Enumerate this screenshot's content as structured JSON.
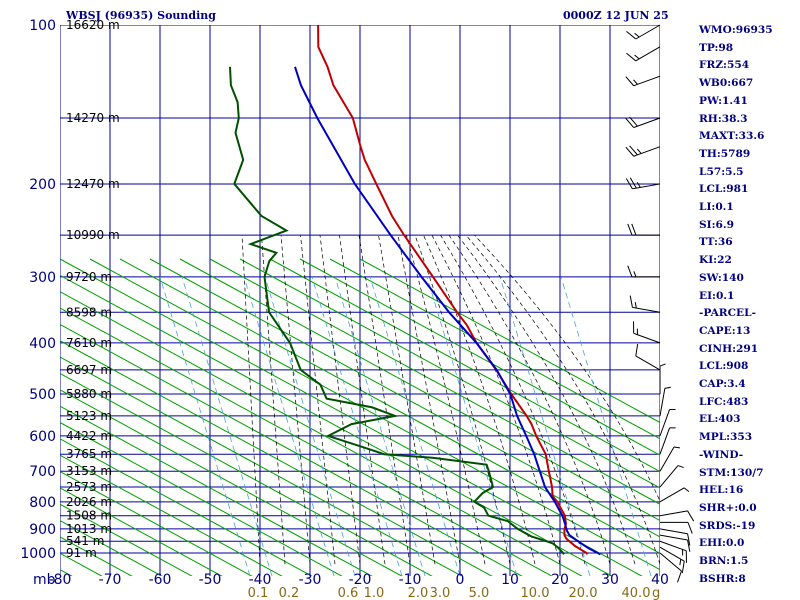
{
  "header": {
    "title": "WBSJ (96935) Sounding",
    "time": "0000Z 12 JUN 25"
  },
  "indices": [
    "WMO:96935",
    "TP:98",
    "FRZ:554",
    "WB0:667",
    "PW:1.41",
    "RH:38.3",
    "MAXT:33.6",
    "TH:5789",
    "L57:5.5",
    "LCL:981",
    "LI:0.1",
    "SI:6.9",
    "TT:36",
    "KI:22",
    "SW:140",
    "EI:0.1",
    "-PARCEL-",
    "CAPE:13",
    "CINH:291",
    "LCL:908",
    "CAP:3.4",
    "LFC:483",
    "EL:403",
    "MPL:353",
    "-WIND-",
    "STM:130/7",
    "HEL:16",
    "SHR+:0.0",
    "SRDS:-19",
    "EHI:0.0",
    "BRN:1.5",
    "BSHR:8"
  ],
  "colors": {
    "grid": "#0000a0",
    "dry_adiabat": "#00a000",
    "moist_adiabat": "#000000",
    "mixing_ratio": "#4aa3df",
    "temperature": "#c00000",
    "dewpoint": "#005000",
    "parcel": "#0000c0",
    "labels": "#000080",
    "mixing_labels": "#8b6914"
  },
  "chart_data": {
    "type": "skew-t log-p",
    "title": "WBSJ (96935) Sounding",
    "xlabel": "",
    "ylabel": "",
    "pressure_ticks": [
      "100",
      "200",
      "300",
      "400",
      "500",
      "600",
      "700",
      "800",
      "900",
      "1000"
    ],
    "pressure_unit": "mb",
    "temperature_ticks": [
      "-80",
      "-70",
      "-60",
      "-50",
      "-40",
      "-30",
      "-20",
      "-10",
      "0",
      "10",
      "20",
      "30",
      "40"
    ],
    "mixing_ratio_labels": [
      "0.1",
      "0.2",
      "0.6",
      "1.0",
      "2.0",
      "3.0",
      "5.0",
      "10.0",
      "20.0",
      "40.0"
    ],
    "mixing_ratio_unit": "g/kg",
    "height_labels": [
      {
        "p": 100,
        "text": "16620 m"
      },
      {
        "p": 150,
        "text": "14270 m"
      },
      {
        "p": 200,
        "text": "12470 m"
      },
      {
        "p": 250,
        "text": "10990 m"
      },
      {
        "p": 300,
        "text": "9720 m"
      },
      {
        "p": 350,
        "text": "8598 m"
      },
      {
        "p": 400,
        "text": "7610 m"
      },
      {
        "p": 450,
        "text": "6697 m"
      },
      {
        "p": 500,
        "text": "5880 m"
      },
      {
        "p": 550,
        "text": "5123 m"
      },
      {
        "p": 600,
        "text": "4422 m"
      },
      {
        "p": 650,
        "text": "3765 m"
      },
      {
        "p": 700,
        "text": "3153 m"
      },
      {
        "p": 750,
        "text": "2573 m"
      },
      {
        "p": 800,
        "text": "2026 m"
      },
      {
        "p": 850,
        "text": "1508 m"
      },
      {
        "p": 900,
        "text": "1013 m"
      },
      {
        "p": 950,
        "text": "541 m"
      },
      {
        "p": 1000,
        "text": "91 m"
      }
    ],
    "series": [
      {
        "name": "temperature",
        "points": [
          [
            1006,
            25.5
          ],
          [
            1000,
            25.2
          ],
          [
            990,
            24.2
          ],
          [
            970,
            22.2
          ],
          [
            940,
            19.8
          ],
          [
            925,
            19
          ],
          [
            900,
            18.4
          ],
          [
            880,
            18.2
          ],
          [
            850,
            17.2
          ],
          [
            800,
            14.3
          ],
          [
            780,
            12.8
          ],
          [
            750,
            11.8
          ],
          [
            720,
            10.5
          ],
          [
            700,
            9.6
          ],
          [
            650,
            7.3
          ],
          [
            600,
            3.6
          ],
          [
            570,
            1.5
          ],
          [
            550,
            -0.3
          ],
          [
            500,
            -5.5
          ],
          [
            450,
            -10.9
          ],
          [
            400,
            -17.5
          ],
          [
            370,
            -21.2
          ],
          [
            350,
            -24.4
          ],
          [
            300,
            -32.7
          ],
          [
            250,
            -42.6
          ],
          [
            230,
            -46.9
          ],
          [
            200,
            -53.2
          ],
          [
            180,
            -57.9
          ],
          [
            170,
            -60
          ],
          [
            150,
            -64.4
          ],
          [
            130,
            -71.5
          ],
          [
            120,
            -74.5
          ],
          [
            110,
            -78.3
          ],
          [
            100,
            -80.5
          ],
          [
            98,
            -80
          ]
        ]
      },
      {
        "name": "dewpoint",
        "points": [
          [
            1006,
            20.8
          ],
          [
            1000,
            20.5
          ],
          [
            980,
            19.2
          ],
          [
            960,
            17.6
          ],
          [
            950,
            16
          ],
          [
            930,
            12.5
          ],
          [
            900,
            9
          ],
          [
            870,
            6.3
          ],
          [
            850,
            1.9
          ],
          [
            820,
            0.2
          ],
          [
            800,
            -2.3
          ],
          [
            770,
            -1.5
          ],
          [
            750,
            0
          ],
          [
            700,
            -2.4
          ],
          [
            680,
            -3.5
          ],
          [
            660,
            -15
          ],
          [
            650,
            -25
          ],
          [
            630,
            -30
          ],
          [
            600,
            -38
          ],
          [
            570,
            -34.5
          ],
          [
            550,
            -26.6
          ],
          [
            530,
            -32
          ],
          [
            510,
            -42
          ],
          [
            480,
            -44.6
          ],
          [
            450,
            -50
          ],
          [
            400,
            -54.8
          ],
          [
            350,
            -62
          ],
          [
            300,
            -66.4
          ],
          [
            280,
            -67
          ],
          [
            270,
            -66.4
          ],
          [
            260,
            -72.4
          ],
          [
            245,
            -66.6
          ],
          [
            230,
            -73
          ],
          [
            200,
            -81.6
          ],
          [
            180,
            -82.2
          ],
          [
            160,
            -86.4
          ],
          [
            150,
            -87.2
          ],
          [
            140,
            -89
          ],
          [
            130,
            -92
          ],
          [
            120,
            -94
          ]
        ]
      },
      {
        "name": "parcel",
        "points": [
          [
            1006,
            28.1
          ],
          [
            980,
            25.2
          ],
          [
            950,
            22.3
          ],
          [
            925,
            20
          ],
          [
            908,
            19.1
          ],
          [
            880,
            18
          ],
          [
            850,
            16.7
          ],
          [
            800,
            13.8
          ],
          [
            750,
            10.4
          ],
          [
            700,
            7.8
          ],
          [
            650,
            5
          ],
          [
            600,
            1.6
          ],
          [
            550,
            -2.2
          ],
          [
            500,
            -5.7
          ],
          [
            450,
            -10.8
          ],
          [
            400,
            -17.5
          ],
          [
            350,
            -26
          ],
          [
            300,
            -35
          ],
          [
            250,
            -45.3
          ],
          [
            200,
            -57.5
          ],
          [
            150,
            -71.5
          ],
          [
            130,
            -78
          ],
          [
            120,
            -81
          ]
        ]
      }
    ],
    "wind_barbs": [
      {
        "p": 1000,
        "dir": 130,
        "spd": 10
      },
      {
        "p": 975,
        "dir": 120,
        "spd": 15
      },
      {
        "p": 950,
        "dir": 110,
        "spd": 15
      },
      {
        "p": 925,
        "dir": 100,
        "spd": 10
      },
      {
        "p": 900,
        "dir": 100,
        "spd": 10
      },
      {
        "p": 875,
        "dir": 90,
        "spd": 10
      },
      {
        "p": 850,
        "dir": 80,
        "spd": 10
      },
      {
        "p": 800,
        "dir": 60,
        "spd": 5
      },
      {
        "p": 750,
        "dir": 40,
        "spd": 5
      },
      {
        "p": 700,
        "dir": 30,
        "spd": 5
      },
      {
        "p": 650,
        "dir": 20,
        "spd": 5
      },
      {
        "p": 600,
        "dir": 20,
        "spd": 5
      },
      {
        "p": 550,
        "dir": 10,
        "spd": 5
      },
      {
        "p": 500,
        "dir": 0,
        "spd": 5
      },
      {
        "p": 450,
        "dir": 300,
        "spd": 10
      },
      {
        "p": 400,
        "dir": 290,
        "spd": 15
      },
      {
        "p": 350,
        "dir": 280,
        "spd": 15
      },
      {
        "p": 300,
        "dir": 270,
        "spd": 15
      },
      {
        "p": 250,
        "dir": 270,
        "spd": 20
      },
      {
        "p": 200,
        "dir": 260,
        "spd": 25
      },
      {
        "p": 170,
        "dir": 250,
        "spd": 25
      },
      {
        "p": 150,
        "dir": 250,
        "spd": 20
      },
      {
        "p": 125,
        "dir": 250,
        "spd": 15
      },
      {
        "p": 110,
        "dir": 240,
        "spd": 15
      },
      {
        "p": 100,
        "dir": 240,
        "spd": 15
      }
    ],
    "xlim": [
      -80,
      40
    ],
    "ylim": [
      1050,
      100
    ],
    "log_pressure": true,
    "grid": true
  }
}
